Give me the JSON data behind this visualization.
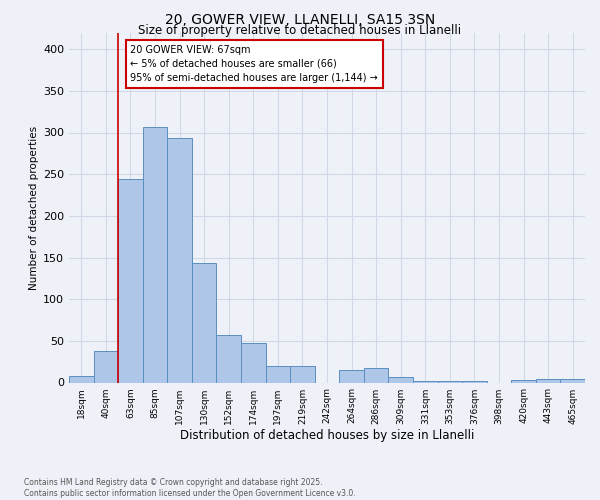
{
  "title_line1": "20, GOWER VIEW, LLANELLI, SA15 3SN",
  "title_line2": "Size of property relative to detached houses in Llanelli",
  "xlabel": "Distribution of detached houses by size in Llanelli",
  "ylabel": "Number of detached properties",
  "categories": [
    "18sqm",
    "40sqm",
    "63sqm",
    "85sqm",
    "107sqm",
    "130sqm",
    "152sqm",
    "174sqm",
    "197sqm",
    "219sqm",
    "242sqm",
    "264sqm",
    "286sqm",
    "309sqm",
    "331sqm",
    "353sqm",
    "376sqm",
    "398sqm",
    "420sqm",
    "443sqm",
    "465sqm"
  ],
  "values": [
    8,
    38,
    244,
    307,
    293,
    143,
    57,
    48,
    20,
    20,
    0,
    15,
    18,
    7,
    2,
    2,
    2,
    0,
    3,
    4,
    4
  ],
  "bar_color": "#aec6e8",
  "bar_edge_color": "#5a8fc2",
  "vline_x": 1.5,
  "vline_color": "#cc0000",
  "annotation_text": "20 GOWER VIEW: 67sqm\n← 5% of detached houses are smaller (66)\n95% of semi-detached houses are larger (1,144) →",
  "annotation_box_color": "#ffffff",
  "annotation_box_edge": "#cc0000",
  "ylim": [
    0,
    420
  ],
  "grid_color": "#d0d8e8",
  "background_color": "#eef2f8",
  "footer": "Contains HM Land Registry data © Crown copyright and database right 2025.\nContains public sector information licensed under the Open Government Licence v3.0."
}
